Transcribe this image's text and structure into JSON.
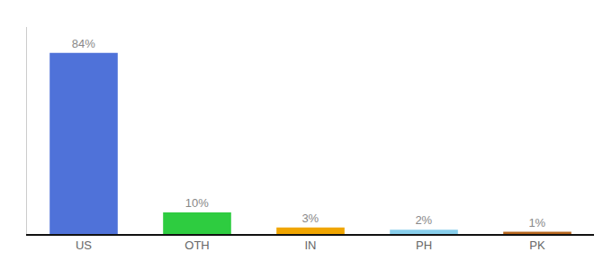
{
  "chart_data": {
    "type": "bar",
    "categories": [
      "US",
      "OTH",
      "IN",
      "PH",
      "PK"
    ],
    "values": [
      84,
      10,
      3,
      2,
      1
    ],
    "value_labels": [
      "84%",
      "10%",
      "3%",
      "2%",
      "1%"
    ],
    "colors": [
      "#4f72d9",
      "#2ecc40",
      "#f0a500",
      "#87ceeb",
      "#b5651d"
    ],
    "ylim": [
      0,
      96
    ],
    "data_labels": true,
    "tick_labels": "x",
    "grid": false
  }
}
